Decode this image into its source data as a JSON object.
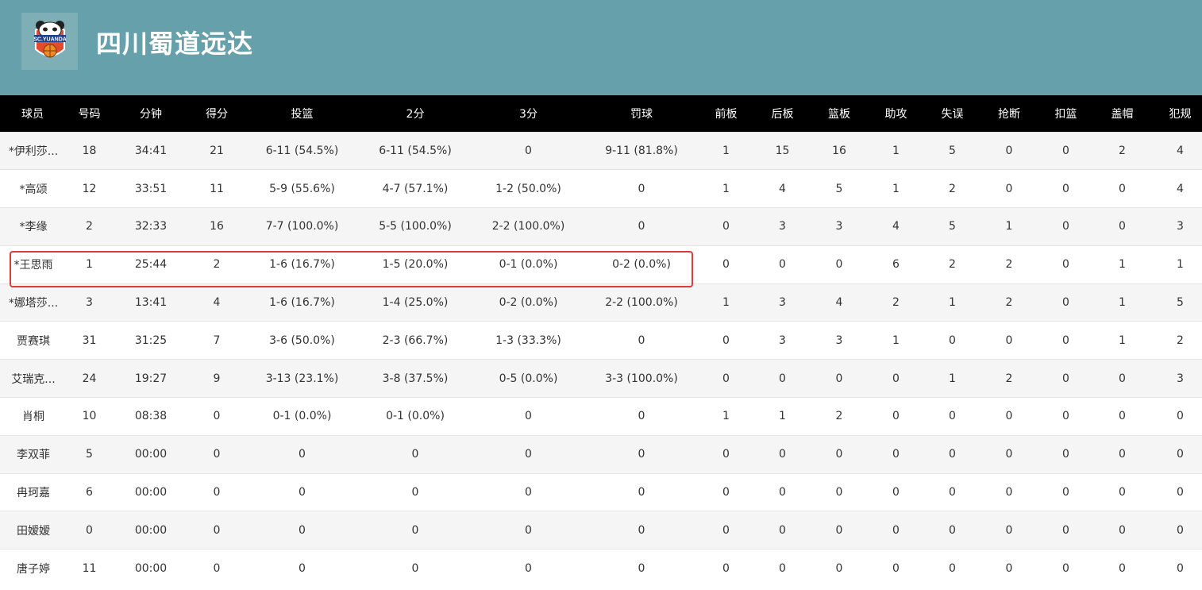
{
  "team": {
    "name": "四川蜀道远达",
    "logo_text": "SC.YUANDA",
    "colors": {
      "banner": "#66a0aa",
      "header_bg": "#000000",
      "highlight": "#e23a3a"
    }
  },
  "columns": [
    "球员",
    "号码",
    "分钟",
    "得分",
    "投篮",
    "2分",
    "3分",
    "罚球",
    "前板",
    "后板",
    "篮板",
    "助攻",
    "失误",
    "抢断",
    "扣篮",
    "盖帽",
    "犯规"
  ],
  "rows": [
    [
      "*伊利莎...",
      "18",
      "34:41",
      "21",
      "6-11 (54.5%)",
      "6-11 (54.5%)",
      "0",
      "9-11 (81.8%)",
      "1",
      "15",
      "16",
      "1",
      "5",
      "0",
      "0",
      "2",
      "4"
    ],
    [
      "*高颂",
      "12",
      "33:51",
      "11",
      "5-9 (55.6%)",
      "4-7 (57.1%)",
      "1-2 (50.0%)",
      "0",
      "1",
      "4",
      "5",
      "1",
      "2",
      "0",
      "0",
      "0",
      "4"
    ],
    [
      "*李缘",
      "2",
      "32:33",
      "16",
      "7-7 (100.0%)",
      "5-5 (100.0%)",
      "2-2 (100.0%)",
      "0",
      "0",
      "3",
      "3",
      "4",
      "5",
      "1",
      "0",
      "0",
      "3"
    ],
    [
      "*王思雨",
      "1",
      "25:44",
      "2",
      "1-6 (16.7%)",
      "1-5 (20.0%)",
      "0-1 (0.0%)",
      "0-2 (0.0%)",
      "0",
      "0",
      "0",
      "6",
      "2",
      "2",
      "0",
      "1",
      "1"
    ],
    [
      "*娜塔莎...",
      "3",
      "13:41",
      "4",
      "1-6 (16.7%)",
      "1-4 (25.0%)",
      "0-2 (0.0%)",
      "2-2 (100.0%)",
      "1",
      "3",
      "4",
      "2",
      "1",
      "2",
      "0",
      "1",
      "5"
    ],
    [
      "贾赛琪",
      "31",
      "31:25",
      "7",
      "3-6 (50.0%)",
      "2-3 (66.7%)",
      "1-3 (33.3%)",
      "0",
      "0",
      "3",
      "3",
      "1",
      "0",
      "0",
      "0",
      "1",
      "2"
    ],
    [
      "艾瑞克...",
      "24",
      "19:27",
      "9",
      "3-13 (23.1%)",
      "3-8 (37.5%)",
      "0-5 (0.0%)",
      "3-3 (100.0%)",
      "0",
      "0",
      "0",
      "0",
      "1",
      "2",
      "0",
      "0",
      "3"
    ],
    [
      "肖桐",
      "10",
      "08:38",
      "0",
      "0-1 (0.0%)",
      "0-1 (0.0%)",
      "0",
      "0",
      "1",
      "1",
      "2",
      "0",
      "0",
      "0",
      "0",
      "0",
      "0"
    ],
    [
      "李双菲",
      "5",
      "00:00",
      "0",
      "0",
      "0",
      "0",
      "0",
      "0",
      "0",
      "0",
      "0",
      "0",
      "0",
      "0",
      "0",
      "0"
    ],
    [
      "冉珂嘉",
      "6",
      "00:00",
      "0",
      "0",
      "0",
      "0",
      "0",
      "0",
      "0",
      "0",
      "0",
      "0",
      "0",
      "0",
      "0",
      "0"
    ],
    [
      "田嫒嫒",
      "0",
      "00:00",
      "0",
      "0",
      "0",
      "0",
      "0",
      "0",
      "0",
      "0",
      "0",
      "0",
      "0",
      "0",
      "0",
      "0"
    ],
    [
      "唐子婷",
      "11",
      "00:00",
      "0",
      "0",
      "0",
      "0",
      "0",
      "0",
      "0",
      "0",
      "0",
      "0",
      "0",
      "0",
      "0",
      "0"
    ]
  ]
}
